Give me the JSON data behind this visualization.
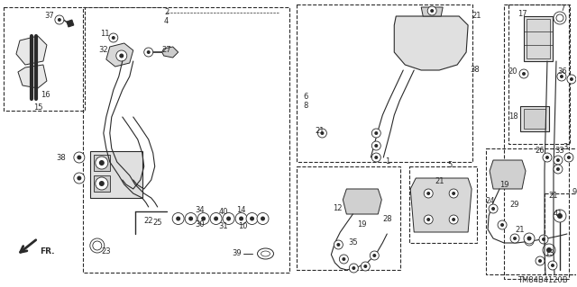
{
  "diagram_code": "TM84B4120B",
  "bg": "#ffffff",
  "lc": "#2a2a2a",
  "figsize": [
    6.4,
    3.19
  ],
  "dpi": 100
}
